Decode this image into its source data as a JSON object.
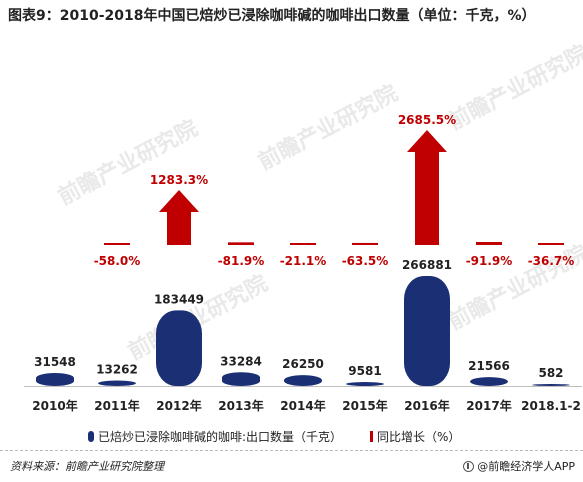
{
  "title": "图表9：2010-2018年中国已焙炒已浸除咖啡碱的咖啡出口数量（单位：千克，%）",
  "watermark": "前瞻产业研究院",
  "chart_data": {
    "type": "bar",
    "categories": [
      "2010年",
      "2011年",
      "2012年",
      "2013年",
      "2014年",
      "2015年",
      "2016年",
      "2017年",
      "2018.1-2"
    ],
    "series": [
      {
        "name": "已焙炒已浸除咖啡碱的咖啡:出口数量（千克）",
        "type": "bar",
        "color": "#1b2f74",
        "values": [
          31548,
          13262,
          183449,
          33284,
          26250,
          9581,
          266881,
          21566,
          582
        ],
        "labels": [
          "31548",
          "13262",
          "183449",
          "33284",
          "26250",
          "9581",
          "266881",
          "21566",
          "582"
        ]
      },
      {
        "name": "同比增长（%）",
        "type": "arrow",
        "color": "#c00000",
        "values": [
          null,
          -58.0,
          1283.3,
          -81.9,
          -21.1,
          -63.5,
          2685.5,
          -91.9,
          -36.7
        ],
        "labels": [
          "",
          "-58.0%",
          "1283.3%",
          "-81.9%",
          "-21.1%",
          "-63.5%",
          "2685.5%",
          "-91.9%",
          "-36.7%"
        ]
      }
    ],
    "bar_ylim": [
      0,
      300000
    ],
    "growth_ylim": [
      0,
      3000
    ],
    "legend": "bottom"
  },
  "legend": {
    "bar_label": "已焙炒已浸除咖啡碱的咖啡:出口数量（千克）",
    "growth_label": "同比增长（%）"
  },
  "footer": {
    "source": "资料来源：前瞻产业研究院整理",
    "brand": "@前瞻经济学人APP"
  }
}
